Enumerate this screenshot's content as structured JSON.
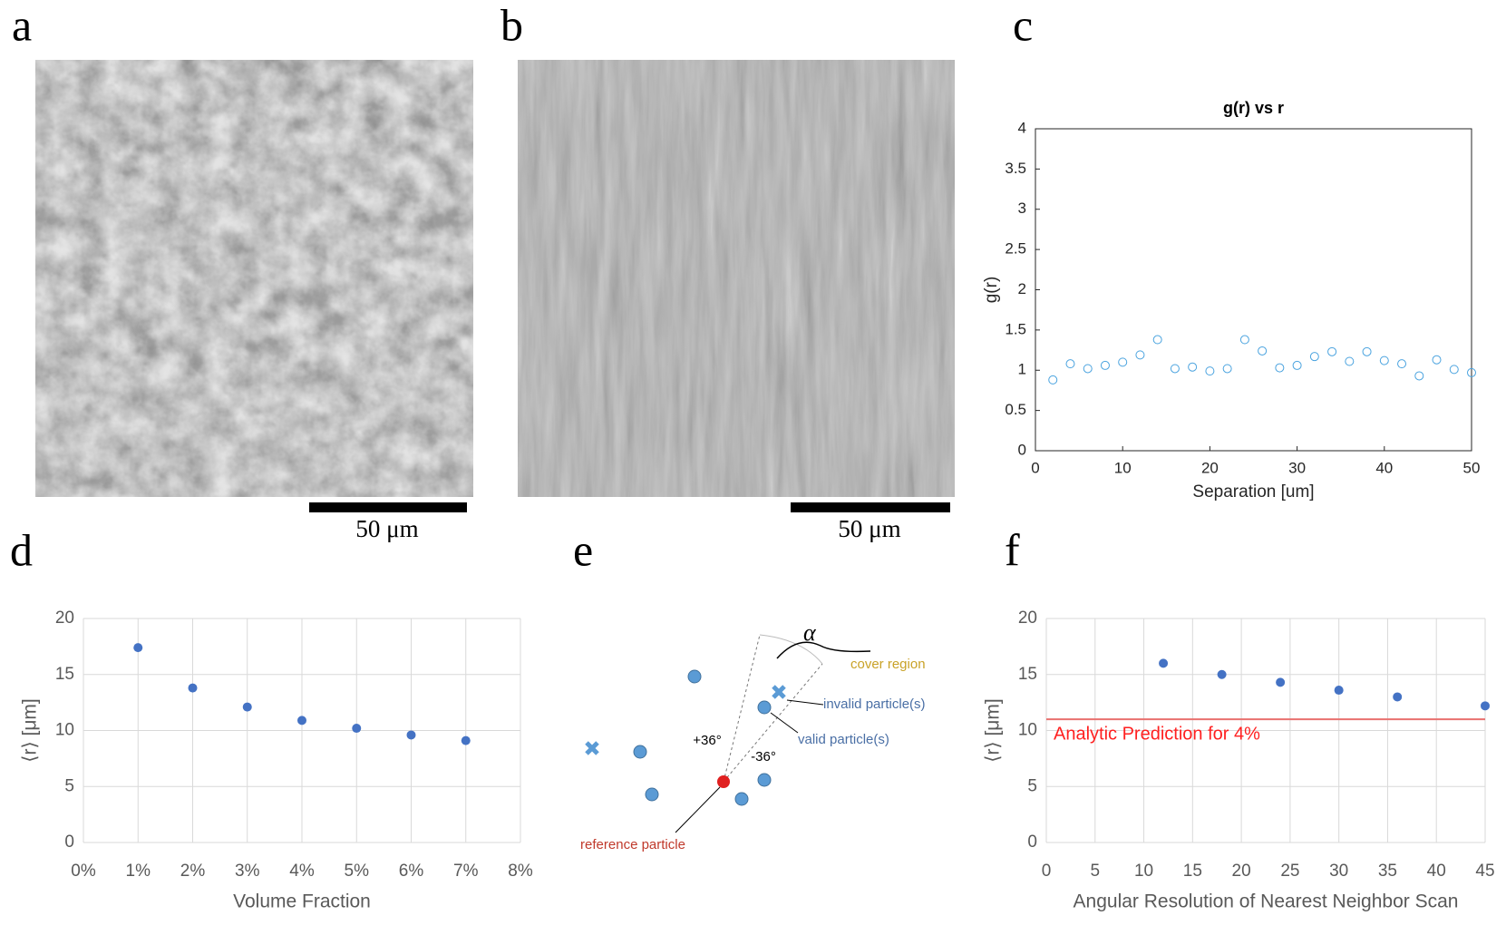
{
  "figure_labels": [
    "a",
    "b",
    "c",
    "d",
    "e",
    "f"
  ],
  "images": [
    {
      "scale_bar": "50 μm"
    },
    {
      "scale_bar": "50 μm"
    }
  ],
  "diagram": {
    "alpha": "α",
    "cover": "cover region",
    "invalid": "invalid particle(s)",
    "valid": "valid particle(s)",
    "plus": "+36°",
    "minus": "-36°",
    "reference": "reference particle"
  },
  "chart_data": [
    {
      "type": "scatter",
      "title": "g(r) vs r",
      "x_label": "Separation [um]",
      "y_label": "g(r)",
      "marker": "open",
      "box": true,
      "grid": false,
      "color": "#4aa3df",
      "x": [
        2,
        4,
        6,
        8,
        10,
        12,
        14,
        16,
        18,
        20,
        22,
        24,
        26,
        28,
        30,
        32,
        34,
        36,
        38,
        40,
        42,
        44,
        46,
        48,
        50
      ],
      "values": [
        0.88,
        1.08,
        1.02,
        1.06,
        1.1,
        1.19,
        1.38,
        1.02,
        1.04,
        0.99,
        1.02,
        1.38,
        1.24,
        1.03,
        1.06,
        1.17,
        1.23,
        1.11,
        1.23,
        1.12,
        1.08,
        0.93,
        1.13,
        1.01,
        0.97
      ],
      "xlim": [
        0,
        50
      ],
      "xticks": [
        0,
        10,
        20,
        30,
        40,
        50
      ],
      "ylim": [
        0,
        4
      ],
      "yticks": [
        0,
        0.5,
        1,
        1.5,
        2,
        2.5,
        3,
        3.5,
        4
      ]
    },
    {
      "type": "scatter",
      "x_label": "Volume Fraction",
      "y_label": "⟨r⟩ [μm]",
      "marker": "filled",
      "box": false,
      "grid": true,
      "color": "#4472c4",
      "x": [
        1,
        2,
        3,
        4,
        5,
        6,
        7
      ],
      "values": [
        17.4,
        13.8,
        12.1,
        10.9,
        10.2,
        9.6,
        9.1
      ],
      "xlim": [
        0,
        8
      ],
      "xticks": [
        {
          "value": 0,
          "label": "0%"
        },
        {
          "value": 1,
          "label": "1%"
        },
        {
          "value": 2,
          "label": "2%"
        },
        {
          "value": 3,
          "label": "3%"
        },
        {
          "value": 4,
          "label": "4%"
        },
        {
          "value": 5,
          "label": "5%"
        },
        {
          "value": 6,
          "label": "6%"
        },
        {
          "value": 7,
          "label": "7%"
        },
        {
          "value": 8,
          "label": "8%"
        }
      ],
      "ylim": [
        0,
        20
      ],
      "yticks": [
        0,
        5,
        10,
        15,
        20
      ]
    },
    {
      "type": "scatter",
      "x_label": "Angular Resolution of Nearest Neighbor Scan",
      "y_label": "⟨r⟩ [μm]",
      "marker": "filled",
      "box": false,
      "grid": true,
      "color": "#4472c4",
      "x": [
        12,
        18,
        24,
        30,
        36,
        45
      ],
      "values": [
        16.0,
        15.0,
        14.3,
        13.6,
        13.0,
        12.2
      ],
      "reference_line": {
        "value": 11,
        "label": "Analytic Prediction for 4%",
        "color": "#e8716f"
      },
      "xlim": [
        0,
        45
      ],
      "xticks": [
        0,
        5,
        10,
        15,
        20,
        25,
        30,
        35,
        40,
        45
      ],
      "ylim": [
        0,
        20
      ],
      "yticks": [
        0,
        5,
        10,
        15,
        20
      ]
    }
  ]
}
